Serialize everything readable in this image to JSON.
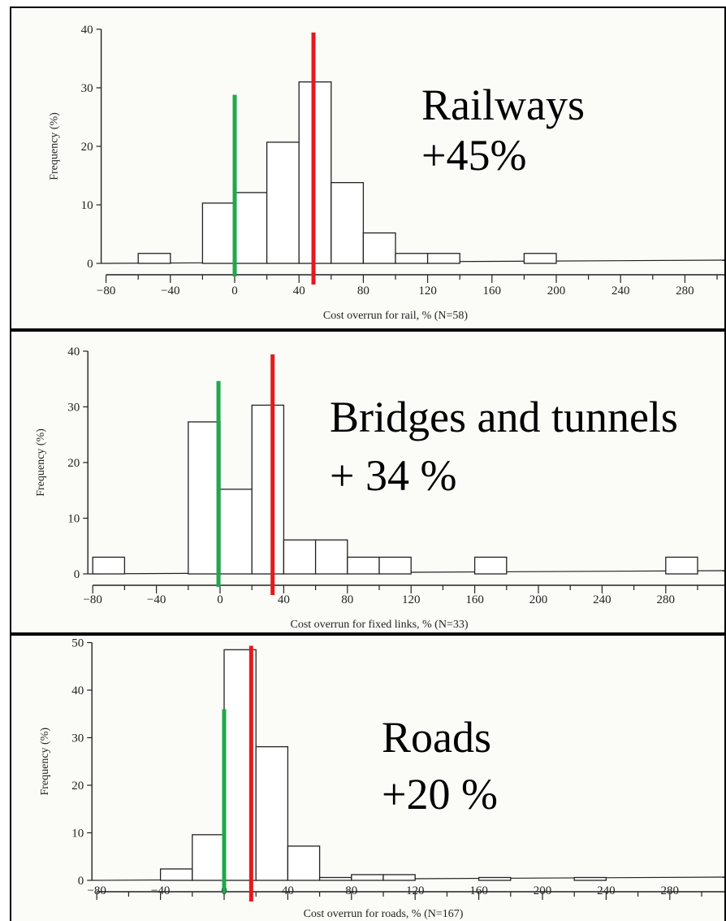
{
  "chart_data": [
    {
      "type": "bar",
      "title": "Railways",
      "subtitle": "+45%",
      "xlabel": "Cost overrun for rail, % (N=58)",
      "ylabel": "Frequency (%)",
      "bin_width": 20,
      "bin_starts": [
        -60,
        -20,
        0,
        20,
        40,
        60,
        80,
        100,
        120,
        180
      ],
      "values": [
        1.7,
        10.3,
        12.1,
        20.7,
        31.0,
        13.8,
        5.2,
        1.7,
        1.7,
        1.7
      ],
      "xticks": [
        -80,
        -40,
        0,
        40,
        80,
        120,
        160,
        200,
        240,
        280
      ],
      "xlim": [
        -80,
        300
      ],
      "yticks": [
        0,
        10,
        20,
        30,
        40
      ],
      "ylim": [
        0,
        40
      ],
      "markers": [
        {
          "x": 0,
          "color": "#1fa84a"
        },
        {
          "x": 49,
          "color": "#e5191d"
        }
      ]
    },
    {
      "type": "bar",
      "title": "Bridges and tunnels",
      "subtitle": "+ 34 %",
      "xlabel": "Cost overrun for fixed links, % (N=33)",
      "ylabel": "Frequency (%)",
      "bin_width": 20,
      "bin_starts": [
        -80,
        -20,
        0,
        20,
        40,
        60,
        80,
        100,
        160,
        280
      ],
      "values": [
        3.0,
        27.3,
        15.2,
        30.3,
        6.1,
        6.1,
        3.0,
        3.0,
        3.0,
        3.0
      ],
      "xticks": [
        -80,
        -40,
        0,
        40,
        80,
        120,
        160,
        200,
        240,
        280
      ],
      "xlim": [
        -80,
        300
      ],
      "yticks": [
        0,
        10,
        20,
        30,
        40
      ],
      "ylim": [
        0,
        40
      ],
      "markers": [
        {
          "x": -1,
          "color": "#1fa84a"
        },
        {
          "x": 33,
          "color": "#e5191d"
        }
      ]
    },
    {
      "type": "bar",
      "title": "Roads",
      "subtitle": "+20 %",
      "xlabel": "Cost overrun for roads, % (N=167)",
      "ylabel": "Frequency (%)",
      "bin_width": 20,
      "bin_starts": [
        -40,
        -20,
        0,
        20,
        40,
        60,
        80,
        100,
        160,
        220
      ],
      "values": [
        2.4,
        9.6,
        48.5,
        28.1,
        7.2,
        0.6,
        1.2,
        1.2,
        0.6,
        0.6
      ],
      "xticks": [
        -80,
        -40,
        0,
        40,
        80,
        120,
        160,
        200,
        240,
        280
      ],
      "xlim": [
        -80,
        300
      ],
      "yticks": [
        0,
        10,
        20,
        30,
        40,
        50
      ],
      "ylim": [
        0,
        50
      ],
      "markers": [
        {
          "x": 0,
          "color": "#1fa84a"
        },
        {
          "x": 17,
          "color": "#e5191d"
        }
      ]
    }
  ]
}
